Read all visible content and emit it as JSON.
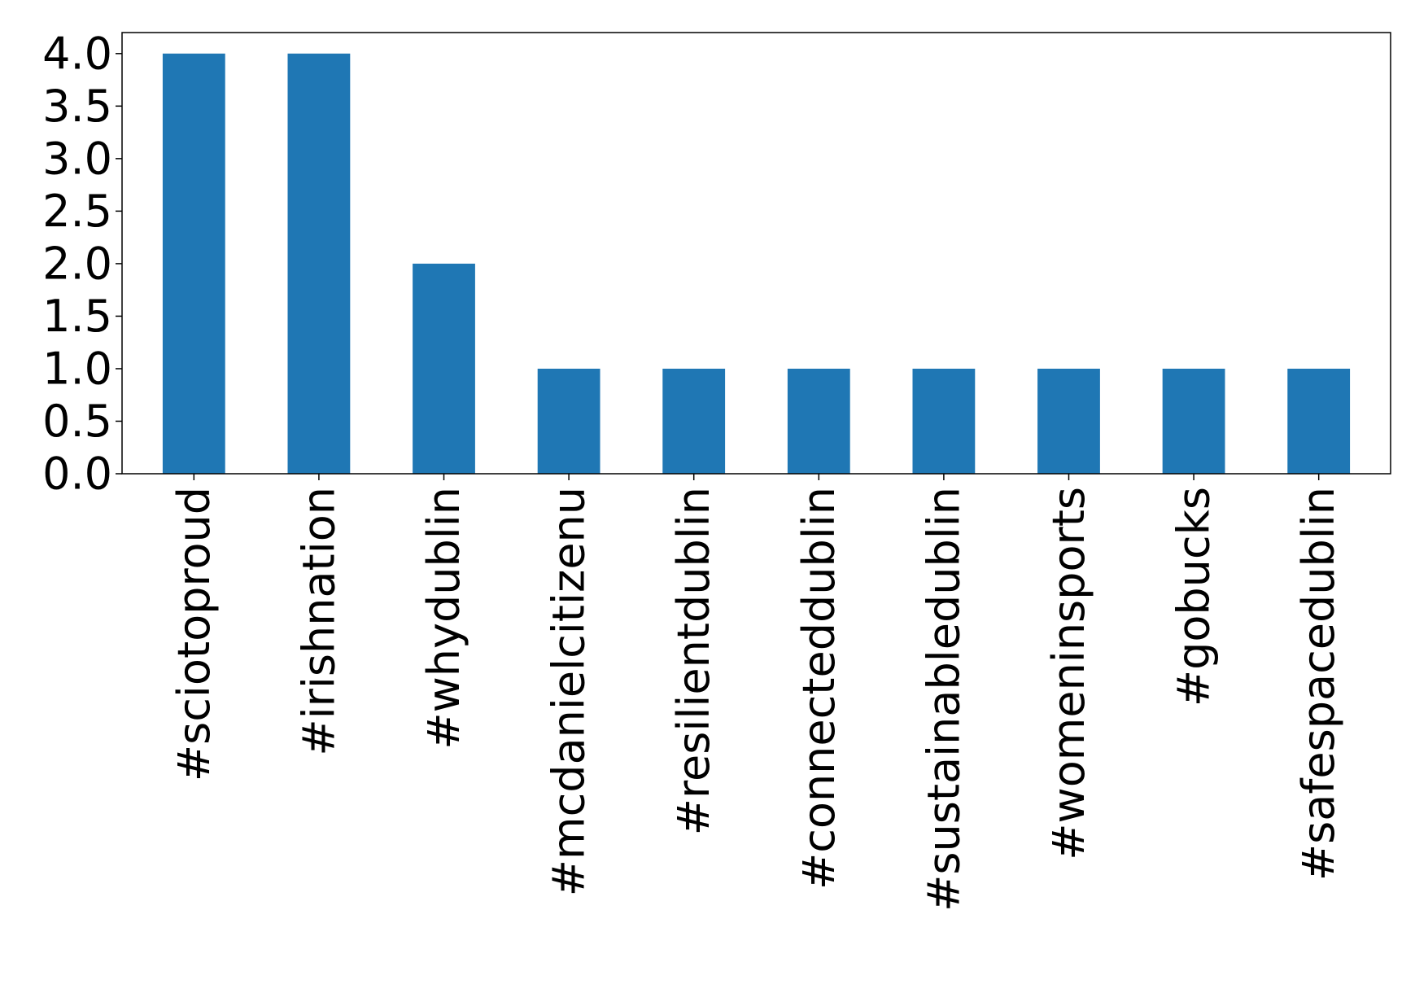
{
  "chart_data": {
    "type": "bar",
    "categories": [
      "#sciotoproud",
      "#irishnation",
      "#whydublin",
      "#mcdanielcitizenu",
      "#resilientdublin",
      "#connecteddublin",
      "#sustainabledublin",
      "#womeninsports",
      "#gobucks",
      "#safespacedublin"
    ],
    "values": [
      4,
      4,
      2,
      1,
      1,
      1,
      1,
      1,
      1,
      1
    ],
    "ylim": [
      0,
      4.2
    ],
    "yticks": [
      "0.0",
      "0.5",
      "1.0",
      "1.5",
      "2.0",
      "2.5",
      "3.0",
      "3.5",
      "4.0"
    ],
    "bar_color": "#1f77b4",
    "grid": false,
    "legend": "none",
    "title": "",
    "xlabel": "",
    "ylabel": ""
  }
}
